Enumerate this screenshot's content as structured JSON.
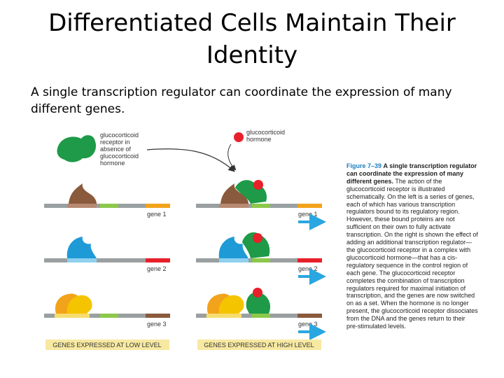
{
  "title": "Differentiated Cells Maintain Their Identity",
  "subtitle": "A single transcription regulator can coordinate the expression of many different genes.",
  "diagram": {
    "receptor_label": [
      "glucocorticoid",
      "receptor in",
      "absence of",
      "glucocorticoid",
      "hormone"
    ],
    "hormone_label": [
      "glucocorticoid",
      "hormone"
    ],
    "gene_labels": [
      "gene 1",
      "gene 2",
      "gene 3"
    ],
    "band_left": "GENES EXPRESSED AT LOW LEVEL",
    "band_right": "GENES EXPRESSED AT HIGH LEVEL"
  },
  "caption": {
    "figure": "Figure 7–39",
    "heading": "A single transcription regulator can coordinate the expression of many different genes.",
    "body": "The action of the glucocorticoid receptor is illustrated schematically. On the left is a series of genes, each of which has various transcription regulators bound to its regulatory region. However, these bound proteins are not sufficient on their own to fully activate transcription. On the right is shown the effect of adding an additional transcription regulator—the glucocorticoid receptor in a complex with glucocorticoid hormone—that has a cis-regulatory sequence in the control region of each gene. The glucocorticoid receptor completes the combination of transcription regulators required for maximal initiation of transcription, and the genes are now switched on as a set. When the hormone is no longer present, the glucocorticoid receptor dissociates from the DNA and the genes return to their pre-stimulated levels."
  },
  "colors": {
    "receptor": "#1e9a48",
    "hormone": "#e8202a",
    "brown": "#8a5a3c",
    "blue": "#1e9ad6",
    "yellow": "#f5c400",
    "orange": "#f2a31c",
    "dna": "#9aa0a2",
    "arrow": "#2aa6e0",
    "band": "#f7e9a2"
  }
}
